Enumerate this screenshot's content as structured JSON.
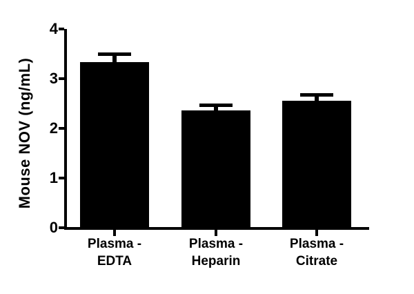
{
  "figure": {
    "background": "#ffffff",
    "ink_color": "#000000"
  },
  "chart_data": {
    "type": "bar",
    "title": "",
    "xlabel": "",
    "ylabel": "Mouse NOV (ng/mL)",
    "categories": [
      "Plasma -\nEDTA",
      "Plasma -\nHeparin",
      "Plasma -\nCitrate"
    ],
    "values": [
      3.33,
      2.36,
      2.56
    ],
    "errors": [
      0.16,
      0.1,
      0.12
    ],
    "error_bars": "upper-only",
    "bar_color": "#000000",
    "ylim": [
      0,
      4
    ],
    "yticks": [
      0,
      1,
      2,
      3,
      4
    ],
    "grid": false,
    "legend": "none"
  }
}
